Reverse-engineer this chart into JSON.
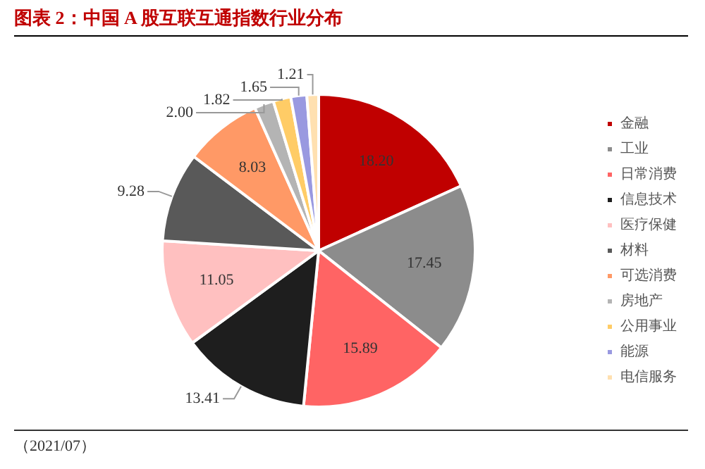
{
  "chart_data": {
    "type": "pie",
    "title": "图表 2：中国 A 股互联互通指数行业分布",
    "categories": [
      "金融",
      "工业",
      "日常消费",
      "信息技术",
      "医疗保健",
      "材料",
      "可选消费",
      "房地产",
      "公用事业",
      "能源",
      "电信服务"
    ],
    "values": [
      18.2,
      17.45,
      15.89,
      13.41,
      11.05,
      9.28,
      8.03,
      2.0,
      1.82,
      1.65,
      1.21
    ],
    "colors": [
      "#c00000",
      "#8c8c8c",
      "#ff6464",
      "#1e1e1e",
      "#ffc0c0",
      "#595959",
      "#ff9966",
      "#b4b4b4",
      "#ffcc66",
      "#9999e0",
      "#ffe0b0"
    ],
    "value_labels": [
      "18.20",
      "17.45",
      "15.89",
      "13.41",
      "11.05",
      "9.28",
      "8.03",
      "2.00",
      "1.82",
      "1.65",
      "1.21"
    ],
    "legend": "right",
    "annotations": [
      "（2021/07）"
    ]
  }
}
